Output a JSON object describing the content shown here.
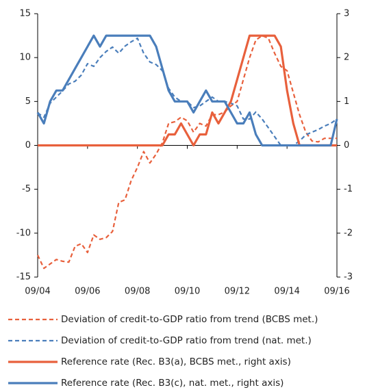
{
  "chart_data": {
    "type": "line",
    "x": [
      2004,
      2004.25,
      2004.5,
      2004.75,
      2005,
      2005.25,
      2005.5,
      2005.75,
      2006,
      2006.25,
      2006.5,
      2006.75,
      2007,
      2007.25,
      2007.5,
      2007.75,
      2008,
      2008.25,
      2008.5,
      2008.75,
      2009,
      2009.25,
      2009.5,
      2009.75,
      2010,
      2010.25,
      2010.5,
      2010.75,
      2011,
      2011.25,
      2011.5,
      2011.75,
      2012,
      2012.25,
      2012.5,
      2012.75,
      2013,
      2013.25,
      2013.5,
      2013.75,
      2014,
      2014.25,
      2014.5,
      2014.75,
      2015,
      2015.25,
      2015.5,
      2015.75,
      2016
    ],
    "xlim": [
      2004,
      2016
    ],
    "xticks": [
      {
        "value": 2004,
        "label": "09/04"
      },
      {
        "value": 2006,
        "label": "09/06"
      },
      {
        "value": 2008,
        "label": "09/08"
      },
      {
        "value": 2010,
        "label": "09/10"
      },
      {
        "value": 2012,
        "label": "09/12"
      },
      {
        "value": 2014,
        "label": "09/14"
      },
      {
        "value": 2016,
        "label": "09/16"
      }
    ],
    "ylim": [
      -15,
      15
    ],
    "yticks": [
      -15,
      -10,
      -5,
      0,
      5,
      10,
      15
    ],
    "y2lim": [
      -3,
      3
    ],
    "y2ticks": [
      -3,
      -2,
      -1,
      0,
      1,
      2,
      3
    ],
    "series": [
      {
        "name": "Deviation of credit-to-GDP ratio from trend (BCBS met.)",
        "color": "#e8603c",
        "style": "dashed",
        "values": [
          -12.5,
          -14,
          -13.5,
          -13,
          -13.2,
          -13.3,
          -11.5,
          -11.2,
          -12.2,
          -10.2,
          -10.7,
          -10.5,
          -9.8,
          -6.5,
          -6.2,
          -4,
          -2.5,
          -0.7,
          -2,
          -1,
          0.3,
          2.5,
          2.7,
          3.2,
          2.8,
          1.5,
          2.5,
          2.2,
          3.5,
          3.5,
          3.8,
          4.5,
          5,
          7.5,
          10,
          12,
          12.5,
          12.2,
          10.5,
          9,
          8.5,
          6,
          3.5,
          1.5,
          0.5,
          0.4,
          0.8,
          0.8,
          0.8
        ]
      },
      {
        "name": "Deviation of credit-to-GDP ratio from trend (nat. met.)",
        "color": "#4a7ebb",
        "style": "dashed",
        "values": [
          3.7,
          3.2,
          4.8,
          5.5,
          6.2,
          7,
          7.3,
          8,
          9.3,
          9,
          10,
          10.7,
          11.2,
          10.5,
          11.3,
          11.8,
          12.2,
          10.5,
          9.5,
          9.2,
          8.5,
          6.5,
          5.5,
          5,
          5,
          4.3,
          4.5,
          5,
          5.5,
          5,
          5,
          4.8,
          4.5,
          3,
          3,
          3.8,
          3,
          2,
          1,
          0,
          0,
          0,
          0.5,
          1.2,
          1.5,
          1.8,
          2.2,
          2.5,
          3
        ]
      },
      {
        "name": "Reference rate (Rec. B3(a), BCBS met., right axis)",
        "color": "#e8603c",
        "style": "solid",
        "axis": "y2",
        "values": [
          0,
          0,
          0,
          0,
          0,
          0,
          0,
          0,
          0,
          0,
          0,
          0,
          0,
          0,
          0,
          0,
          0,
          0,
          0,
          0,
          0,
          0.25,
          0.25,
          0.5,
          0.25,
          0,
          0.25,
          0.25,
          0.75,
          0.5,
          0.75,
          1,
          1.5,
          2,
          2.5,
          2.5,
          2.5,
          2.5,
          2.5,
          2.25,
          1.25,
          0.5,
          0,
          0,
          0,
          0,
          0,
          0,
          0
        ]
      },
      {
        "name": "Reference rate (Rec. B3(c), nat. met., right axis)",
        "color": "#4a7ebb",
        "style": "solid",
        "axis": "y2",
        "values": [
          0.75,
          0.5,
          1,
          1.25,
          1.25,
          1.5,
          1.75,
          2,
          2.25,
          2.5,
          2.25,
          2.5,
          2.5,
          2.5,
          2.5,
          2.5,
          2.5,
          2.5,
          2.5,
          2.25,
          1.75,
          1.25,
          1,
          1,
          1,
          0.75,
          1,
          1.25,
          1,
          1,
          1,
          0.75,
          0.5,
          0.5,
          0.75,
          0.25,
          0,
          0,
          0,
          0,
          0,
          0,
          0,
          0,
          0,
          0,
          0,
          0,
          0.6
        ]
      }
    ]
  }
}
